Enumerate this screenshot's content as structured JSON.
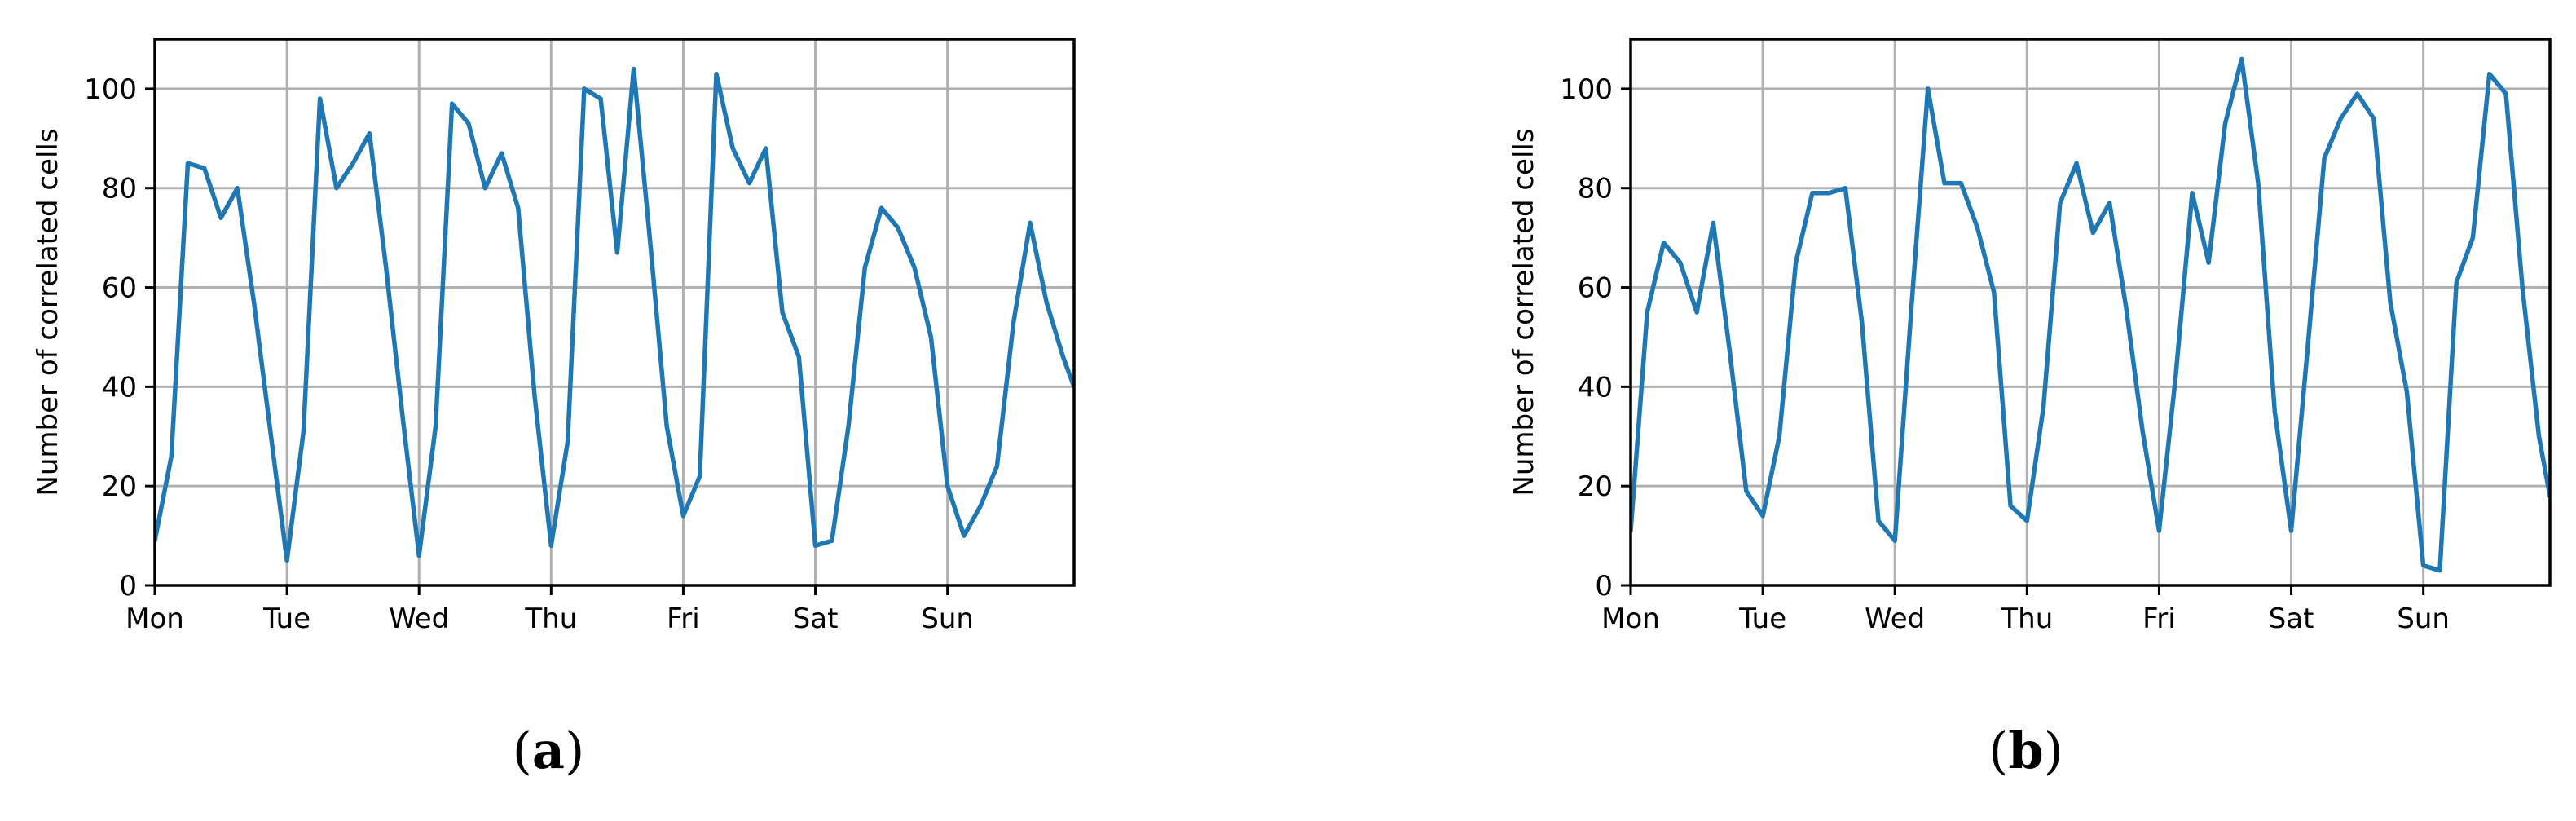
{
  "chart_data": [
    {
      "type": "line",
      "caption": "a",
      "ylabel": "Number of correlated cells",
      "xlabel": "",
      "xlim": [
        0,
        167
      ],
      "ylim": [
        0,
        110
      ],
      "xticks": [
        {
          "label": "Mon",
          "x": 0
        },
        {
          "label": "Tue",
          "x": 24
        },
        {
          "label": "Wed",
          "x": 48
        },
        {
          "label": "Thu",
          "x": 72
        },
        {
          "label": "Fri",
          "x": 96
        },
        {
          "label": "Sat",
          "x": 120
        },
        {
          "label": "Sun",
          "x": 144
        }
      ],
      "yticks": [
        0,
        20,
        40,
        60,
        80,
        100
      ],
      "grid": true,
      "color": "#1f77b4",
      "series": [
        {
          "x": [
            0,
            3,
            6,
            9,
            12,
            15,
            18,
            21,
            24,
            27,
            30,
            33,
            36,
            39,
            42,
            45,
            48,
            51,
            54,
            57,
            60,
            63,
            66,
            69,
            72,
            75,
            78,
            81,
            84,
            87,
            90,
            93,
            96,
            99,
            102,
            105,
            108,
            111,
            114,
            117,
            120,
            123,
            126,
            129,
            132,
            135,
            138,
            141,
            144,
            147,
            150,
            153,
            156,
            159,
            162,
            165,
            167
          ],
          "y": [
            9,
            26,
            85,
            84,
            74,
            80,
            57,
            31,
            5,
            31,
            98,
            80,
            85,
            91,
            64,
            34,
            6,
            32,
            97,
            93,
            80,
            87,
            76,
            38,
            8,
            29,
            100,
            98,
            67,
            104,
            69,
            32,
            14,
            22,
            103,
            88,
            81,
            88,
            55,
            46,
            8,
            9,
            32,
            64,
            76,
            72,
            64,
            50,
            20,
            10,
            16,
            24,
            53,
            73,
            57,
            46,
            40
          ]
        }
      ]
    },
    {
      "type": "line",
      "caption": "b",
      "ylabel": "Number of correlated cells",
      "xlabel": "",
      "xlim": [
        0,
        167
      ],
      "ylim": [
        0,
        110
      ],
      "xticks": [
        {
          "label": "Mon",
          "x": 0
        },
        {
          "label": "Tue",
          "x": 24
        },
        {
          "label": "Wed",
          "x": 48
        },
        {
          "label": "Thu",
          "x": 72
        },
        {
          "label": "Fri",
          "x": 96
        },
        {
          "label": "Sat",
          "x": 120
        },
        {
          "label": "Sun",
          "x": 144
        }
      ],
      "yticks": [
        0,
        20,
        40,
        60,
        80,
        100
      ],
      "grid": true,
      "color": "#1f77b4",
      "series": [
        {
          "x": [
            0,
            3,
            6,
            9,
            12,
            15,
            18,
            21,
            24,
            27,
            30,
            33,
            36,
            39,
            42,
            45,
            48,
            51,
            54,
            57,
            60,
            63,
            66,
            69,
            72,
            75,
            78,
            81,
            84,
            87,
            90,
            93,
            96,
            99,
            102,
            105,
            108,
            111,
            114,
            117,
            120,
            123,
            126,
            129,
            132,
            135,
            138,
            141,
            144,
            147,
            150,
            153,
            156,
            159,
            162,
            165,
            167
          ],
          "y": [
            11,
            55,
            69,
            65,
            55,
            73,
            47,
            19,
            14,
            30,
            65,
            79,
            79,
            80,
            53,
            13,
            9,
            56,
            100,
            81,
            81,
            72,
            59,
            16,
            13,
            36,
            77,
            85,
            71,
            77,
            56,
            31,
            11,
            42,
            79,
            65,
            93,
            106,
            81,
            35,
            11,
            48,
            86,
            94,
            99,
            94,
            57,
            39,
            4,
            3,
            61,
            70,
            103,
            99,
            60,
            30,
            18
          ]
        }
      ]
    }
  ]
}
